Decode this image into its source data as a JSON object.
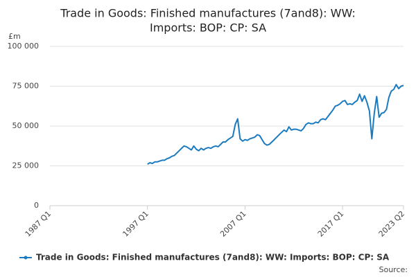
{
  "chart_data": {
    "type": "line",
    "title": "Trade in Goods: Finished manufactures (7and8): WW:",
    "subtitle": "Imports: BOP: CP: SA",
    "y_label": "£m",
    "source": "Source:",
    "categories": [
      "1987 Q1",
      null,
      null,
      null,
      null,
      null,
      null,
      null,
      null,
      null,
      null,
      null,
      null,
      null,
      null,
      null,
      null,
      null,
      null,
      null,
      null,
      null,
      null,
      null,
      null,
      null,
      null,
      null,
      null,
      null,
      null,
      null,
      null,
      null,
      null,
      null,
      null,
      null,
      null,
      null,
      "1997 Q1",
      null,
      null,
      null,
      null,
      null,
      null,
      null,
      null,
      null,
      null,
      null,
      null,
      null,
      null,
      null,
      null,
      null,
      null,
      null,
      null,
      null,
      null,
      null,
      null,
      null,
      null,
      null,
      null,
      null,
      null,
      null,
      null,
      null,
      null,
      null,
      null,
      null,
      null,
      null,
      "2007 Q1",
      null,
      null,
      null,
      null,
      null,
      null,
      null,
      null,
      null,
      null,
      null,
      null,
      null,
      null,
      null,
      null,
      null,
      null,
      null,
      null,
      null,
      null,
      null,
      null,
      null,
      null,
      null,
      null,
      null,
      null,
      null,
      null,
      null,
      null,
      null,
      null,
      null,
      null,
      null,
      "2017 Q1",
      null,
      null,
      null,
      null,
      null,
      null,
      null,
      null,
      null,
      null,
      null,
      null,
      null,
      null,
      null,
      null,
      null,
      null,
      null,
      null,
      null,
      null,
      null,
      null,
      "2023 Q2"
    ],
    "series": [
      {
        "name": "Trade in Goods: Finished manufactures (7and8): WW: Imports: BOP: CP: SA",
        "color": "#1a7ac0",
        "values": [
          null,
          null,
          null,
          null,
          null,
          null,
          null,
          null,
          null,
          null,
          null,
          null,
          null,
          null,
          null,
          null,
          null,
          null,
          null,
          null,
          null,
          null,
          null,
          null,
          null,
          null,
          null,
          null,
          null,
          null,
          null,
          null,
          null,
          null,
          null,
          null,
          null,
          null,
          null,
          null,
          26000,
          27000,
          26500,
          27500,
          27500,
          28000,
          28500,
          28500,
          29500,
          30000,
          31000,
          31500,
          33000,
          34500,
          36000,
          37500,
          37000,
          36000,
          35000,
          37500,
          35500,
          34500,
          36000,
          35000,
          36000,
          36500,
          36000,
          37000,
          37500,
          37000,
          38500,
          40000,
          40000,
          41500,
          42500,
          43500,
          51000,
          54500,
          42000,
          40500,
          41500,
          41000,
          42000,
          42500,
          43000,
          44500,
          44000,
          41500,
          39000,
          38000,
          38500,
          40000,
          41500,
          43000,
          44500,
          46000,
          47500,
          46500,
          49500,
          47500,
          48000,
          48000,
          47500,
          47000,
          48500,
          51000,
          52000,
          51500,
          51500,
          52500,
          52000,
          54000,
          54500,
          54000,
          56000,
          58000,
          60000,
          62500,
          63000,
          64000,
          65500,
          66000,
          63500,
          64000,
          63500,
          65000,
          66000,
          70000,
          65500,
          69000,
          65000,
          59500,
          42000,
          58000,
          68500,
          55500,
          58000,
          58500,
          60500,
          68000,
          72000,
          73000,
          76000,
          73500,
          75000,
          75500
        ]
      }
    ],
    "ylim": [
      0,
      100000
    ],
    "yticks": [
      0,
      {
        "value": 25000,
        "label": "25 000"
      },
      {
        "value": 50000,
        "label": "50 000"
      },
      {
        "value": 75000,
        "label": "75 000"
      },
      {
        "value": 100000,
        "label": "100 000"
      }
    ],
    "grid": true
  }
}
